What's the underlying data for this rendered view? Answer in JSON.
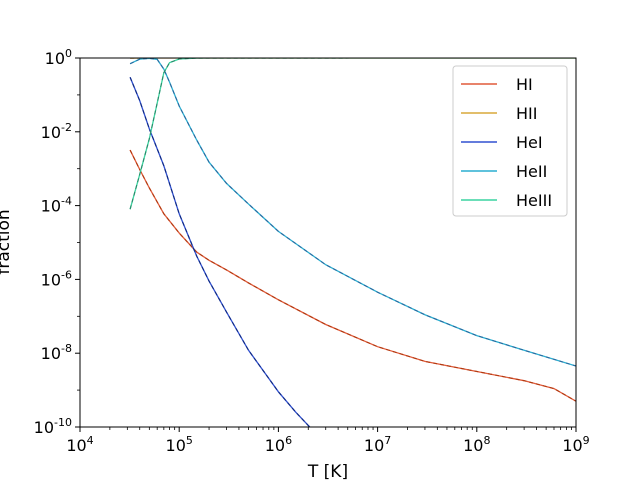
{
  "chart_data": {
    "type": "line",
    "title": "",
    "xlabel": "T [K]",
    "ylabel": "fraction",
    "xscale": "log",
    "yscale": "log",
    "xlim": [
      10000,
      1000000000
    ],
    "ylim": [
      1e-10,
      1
    ],
    "x_tick_exponents": [
      "4",
      "5",
      "6",
      "7",
      "8",
      "9"
    ],
    "y_tick_exponents": [
      "-10",
      "-8",
      "-6",
      "-4",
      "-2",
      "0"
    ],
    "tick_base": "10",
    "legend_position": "upper right",
    "grid": false,
    "series": [
      {
        "name": "HI",
        "color": "#e05a3a",
        "dashed_overlay_color": "#b03a10",
        "points": [
          [
            32000,
            0.0032
          ],
          [
            40000,
            0.00095
          ],
          [
            50000,
            0.0003
          ],
          [
            70000,
            6e-05
          ],
          [
            100000,
            1.8e-05
          ],
          [
            150000,
            5.5e-06
          ],
          [
            200000,
            3.3e-06
          ],
          [
            300000,
            1.8e-06
          ],
          [
            500000,
            8e-07
          ],
          [
            1000000,
            2.8e-07
          ],
          [
            3000000,
            6e-08
          ],
          [
            10000000,
            1.5e-08
          ],
          [
            30000000,
            6e-09
          ],
          [
            100000000,
            3.2e-09
          ],
          [
            300000000,
            1.8e-09
          ],
          [
            600000000,
            1.1e-09
          ],
          [
            1000000000,
            5e-10
          ]
        ]
      },
      {
        "name": "HII",
        "color": "#d9a83a",
        "dashed_overlay_color": "#8a5a1a",
        "points": [
          [
            32000,
            0.997
          ],
          [
            50000,
            0.9997
          ],
          [
            100000,
            1.0
          ],
          [
            1000000000,
            1.0
          ]
        ]
      },
      {
        "name": "HeI",
        "color": "#3050d0",
        "dashed_overlay_color": "#102a80",
        "points": [
          [
            32000,
            0.3
          ],
          [
            40000,
            0.07
          ],
          [
            50000,
            0.012
          ],
          [
            70000,
            0.0012
          ],
          [
            100000,
            6e-05
          ],
          [
            150000,
            4.3e-06
          ],
          [
            200000,
            9e-07
          ],
          [
            300000,
            1.3e-07
          ],
          [
            500000,
            1.2e-08
          ],
          [
            1000000,
            9e-10
          ],
          [
            1500000,
            2.5e-10
          ],
          [
            2000000,
            1.1e-10
          ],
          [
            2500000,
            6e-11
          ]
        ]
      },
      {
        "name": "HeII",
        "color": "#2aaed0",
        "dashed_overlay_color": "#2a6aa0",
        "points": [
          [
            32000,
            0.7
          ],
          [
            40000,
            0.93
          ],
          [
            50000,
            0.98
          ],
          [
            60000,
            0.92
          ],
          [
            70000,
            0.5
          ],
          [
            80000,
            0.22
          ],
          [
            100000,
            0.05
          ],
          [
            150000,
            0.006
          ],
          [
            200000,
            0.0015
          ],
          [
            300000,
            0.0004
          ],
          [
            500000,
            0.00011
          ],
          [
            1000000,
            2e-05
          ],
          [
            3000000,
            2.5e-06
          ],
          [
            10000000,
            4.5e-07
          ],
          [
            30000000,
            1.1e-07
          ],
          [
            100000000,
            3e-08
          ],
          [
            300000000,
            1.2e-08
          ],
          [
            1000000000,
            4.5e-09
          ]
        ]
      },
      {
        "name": "HeIII",
        "color": "#3ad4a0",
        "dashed_overlay_color": "#2a8a6a",
        "points": [
          [
            32000,
            8e-05
          ],
          [
            40000,
            0.0007
          ],
          [
            50000,
            0.0065
          ],
          [
            60000,
            0.06
          ],
          [
            70000,
            0.4
          ],
          [
            80000,
            0.75
          ],
          [
            100000,
            0.94
          ],
          [
            150000,
            0.995
          ],
          [
            200000,
            0.9985
          ],
          [
            1000000000,
            1.0
          ]
        ]
      }
    ]
  }
}
